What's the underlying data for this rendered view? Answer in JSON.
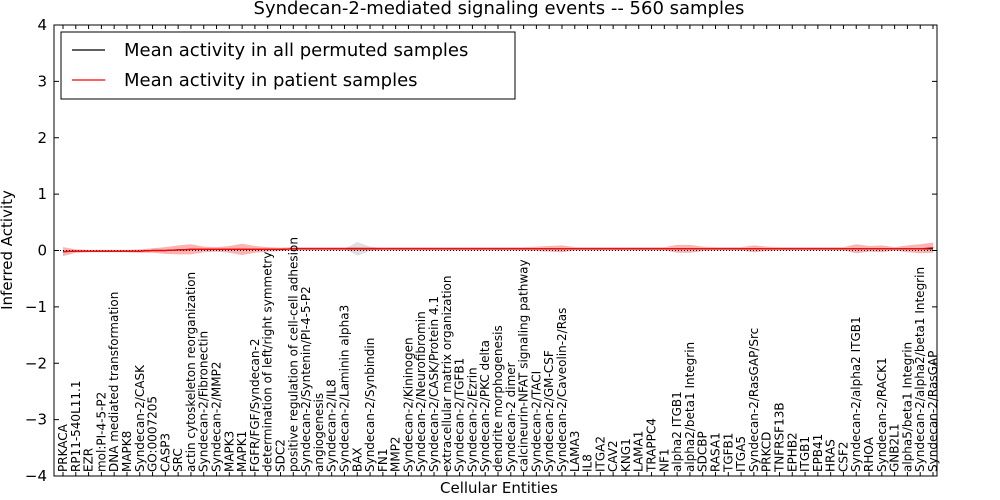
{
  "chart_data": {
    "type": "line",
    "title": "Syndecan-2-mediated signaling events -- 560 samples",
    "xlabel": "Cellular Entities",
    "ylabel": "Inferred Activity",
    "ylim": [
      -4,
      4
    ],
    "yticks": [
      "−4",
      "−3",
      "−2",
      "−1",
      "0",
      "1",
      "2",
      "3",
      "4"
    ],
    "ytick_values": [
      -4,
      -3,
      -2,
      -1,
      0,
      1,
      2,
      3,
      4
    ],
    "legend": {
      "placement": "top-left",
      "entries": [
        {
          "label": "Mean activity in all permuted samples",
          "color": "#000000"
        },
        {
          "label": "Mean activity in patient samples",
          "color": "#ff0000"
        }
      ]
    },
    "categories": [
      "PRKACA",
      "RP11-540L11.1",
      "EZR",
      "mol:PI-4-5-P2",
      "DNA mediated transformation",
      "MAPK8",
      "Syndecan-2/CASK",
      "GO:0007205",
      "CASP3",
      "SRC",
      "actin cytoskeleton reorganization",
      "Syndecan-2/Fibronectin",
      "Syndecan-2/MMP2",
      "MAPK3",
      "MAPK1",
      "FGFR/FGF/Syndecan-2",
      "determination of left/right symmetry",
      "SDC2",
      "positive regulation of cell-cell adhesion",
      "Syndecan-2/Syntenin/PI-4-5-P2",
      "angiogenesis",
      "Syndecan-2/IL8",
      "Syndecan-2/Laminin alpha3",
      "BAX",
      "Syndecan-2/Synbindin",
      "FN1",
      "MMP2",
      "Syndecan-2/Kininogen",
      "Syndecan-2/Neurofibromin",
      "Syndecan-2/CASK/Protein 4.1",
      "extracellular matrix organization",
      "Syndecan-2/TGFB1",
      "Syndecan-2/Ezrin",
      "Syndecan-2/PKC delta",
      "dendrite morphogenesis",
      "Syndecan-2 dimer",
      "calcineurin-NFAT signaling pathway",
      "Syndecan-2/TACI",
      "Syndecan-2/GM-CSF",
      "Syndecan-2/Caveolin-2/Ras",
      "LAMA3",
      "IL8",
      "ITGA2",
      "CAV2",
      "KNG1",
      "LAMA1",
      "TRAPPC4",
      "NF1",
      "alpha2 ITGB1",
      "alpha2/beta1 Integrin",
      "SDCBP",
      "RASA1",
      "TGFB1",
      "ITGA5",
      "Syndecan-2/RasGAP/Src",
      "PRKCD",
      "TNFRSF13B",
      "EPHB2",
      "ITGB1",
      "EPB41",
      "HRAS",
      "CSF2",
      "Syndecan-2/alpha2 ITGB1",
      "RHOA",
      "Syndecan-2/RACK1",
      "GNB2L1",
      "alpha5/beta1 Integrin",
      "Syndecan-2/alpha2/beta1 Integrin",
      "Syndecan-2/RasGAP"
    ],
    "series": [
      {
        "name": "Mean activity in all permuted samples",
        "color": "#000000",
        "values": [
          -0.02,
          -0.01,
          -0.01,
          -0.01,
          -0.01,
          -0.01,
          -0.01,
          0,
          0,
          0.01,
          0.02,
          0.02,
          0.02,
          0.02,
          0.02,
          0.02,
          0.02,
          0.02,
          0.03,
          0.03,
          0.03,
          0.03,
          0.03,
          0.03,
          0.03,
          0.03,
          0.03,
          0.03,
          0.03,
          0.03,
          0.03,
          0.03,
          0.03,
          0.03,
          0.03,
          0.03,
          0.03,
          0.03,
          0.03,
          0.03,
          0.03,
          0.03,
          0.03,
          0.03,
          0.03,
          0.03,
          0.03,
          0.03,
          0.03,
          0.03,
          0.03,
          0.03,
          0.03,
          0.03,
          0.03,
          0.03,
          0.03,
          0.03,
          0.03,
          0.03,
          0.03,
          0.03,
          0.03,
          0.03,
          0.03,
          0.03,
          0.03,
          0.03,
          0.03
        ]
      },
      {
        "name": "Mean activity in patient samples",
        "color": "#ff0000",
        "values": [
          -0.02,
          -0.01,
          -0.01,
          -0.01,
          -0.01,
          -0.01,
          -0.01,
          0,
          0,
          0.01,
          0.02,
          0.02,
          0.02,
          0.02,
          0.02,
          0.02,
          0.02,
          0.02,
          0.03,
          0.03,
          0.03,
          0.03,
          0.03,
          0.03,
          0.03,
          0.03,
          0.03,
          0.03,
          0.03,
          0.03,
          0.03,
          0.03,
          0.03,
          0.03,
          0.03,
          0.03,
          0.03,
          0.03,
          0.03,
          0.03,
          0.03,
          0.03,
          0.03,
          0.03,
          0.03,
          0.03,
          0.03,
          0.03,
          0.03,
          0.03,
          0.03,
          0.03,
          0.03,
          0.03,
          0.03,
          0.03,
          0.03,
          0.03,
          0.03,
          0.03,
          0.03,
          0.03,
          0.03,
          0.03,
          0.03,
          0.03,
          0.03,
          0.03,
          0.05
        ]
      }
    ],
    "patient_band": [
      0.08,
      0.03,
      0.02,
      0.02,
      0.02,
      0.02,
      0.03,
      0.04,
      0.06,
      0.08,
      0.09,
      0.05,
      0.04,
      0.06,
      0.1,
      0.06,
      0.04,
      0.03,
      0.03,
      0.03,
      0.03,
      0.03,
      0.03,
      0.03,
      0.03,
      0.03,
      0.03,
      0.03,
      0.03,
      0.03,
      0.03,
      0.03,
      0.03,
      0.03,
      0.03,
      0.03,
      0.03,
      0.04,
      0.05,
      0.06,
      0.03,
      0.03,
      0.03,
      0.03,
      0.03,
      0.03,
      0.03,
      0.03,
      0.07,
      0.07,
      0.04,
      0.03,
      0.03,
      0.03,
      0.06,
      0.04,
      0.03,
      0.03,
      0.03,
      0.03,
      0.03,
      0.03,
      0.08,
      0.05,
      0.06,
      0.03,
      0.06,
      0.08,
      0.09
    ],
    "permuted_band": [
      0,
      0,
      0,
      0,
      0,
      0,
      0,
      0,
      0,
      0,
      0,
      0,
      0,
      0,
      0,
      0,
      0,
      0,
      0,
      0,
      0,
      0,
      0,
      0.12,
      0.04,
      0,
      0,
      0,
      0,
      0,
      0,
      0,
      0,
      0,
      0,
      0,
      0,
      0,
      0,
      0,
      0,
      0,
      0,
      0,
      0,
      0,
      0,
      0,
      0,
      0,
      0,
      0,
      0,
      0,
      0,
      0,
      0,
      0,
      0,
      0,
      0,
      0,
      0,
      0,
      0,
      0,
      0,
      0,
      0
    ],
    "zero_line": 0
  }
}
